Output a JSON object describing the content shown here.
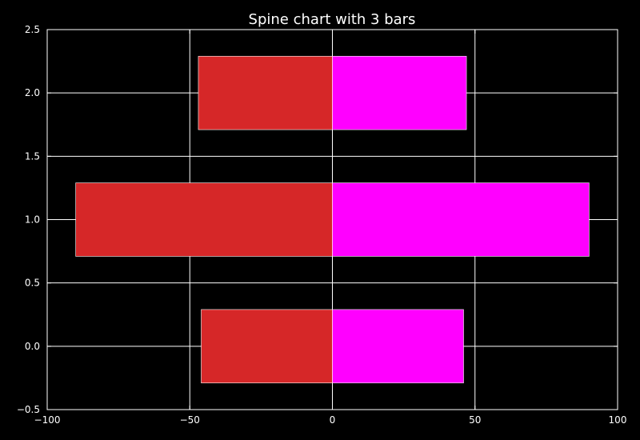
{
  "chart_data": {
    "type": "bar",
    "orientation": "horizontal",
    "title": "Spine chart with 3 bars",
    "xlabel": "",
    "ylabel": "",
    "y": [
      0,
      1,
      2
    ],
    "series": [
      {
        "values": [
          -46,
          -90,
          -47
        ],
        "color": "#d62728"
      },
      {
        "values": [
          46,
          90,
          47
        ],
        "color": "#ff00ff"
      }
    ],
    "bar_height": 0.58,
    "xlim": [
      -100,
      100
    ],
    "ylim": [
      -0.5,
      2.5
    ],
    "xticks": [
      -100,
      -50,
      0,
      50,
      100
    ],
    "yticks": [
      -0.5,
      0.0,
      0.5,
      1.0,
      1.5,
      2.0,
      2.5
    ],
    "xtick_labels": [
      "−100",
      "−50",
      "0",
      "50",
      "100"
    ],
    "ytick_labels": [
      "−0.5",
      "0.0",
      "0.5",
      "1.0",
      "1.5",
      "2.0",
      "2.5"
    ],
    "grid": true,
    "background": "#000000",
    "foreground": "#ffffff"
  }
}
